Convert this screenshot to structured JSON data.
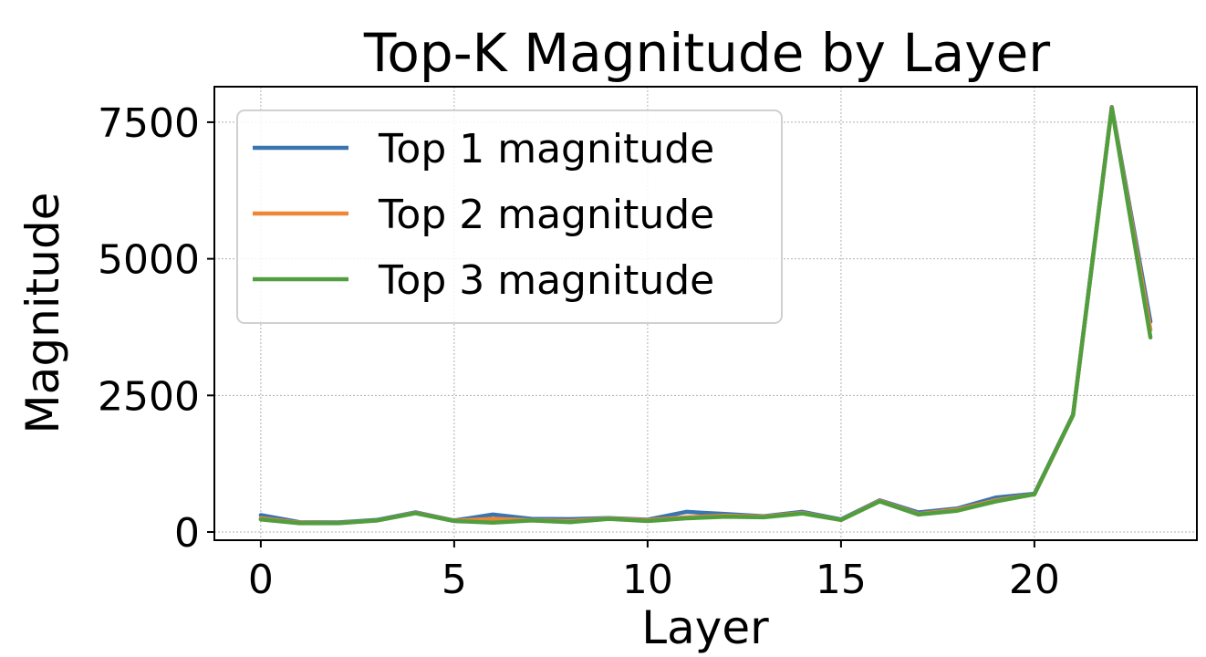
{
  "chart_data": {
    "type": "line",
    "title": "Top-K Magnitude by Layer",
    "xlabel": "Layer",
    "ylabel": "Magnitude",
    "xlim": [
      -1.2,
      24.2
    ],
    "ylim": [
      -150,
      8150
    ],
    "xticks": [
      0,
      5,
      10,
      15,
      20
    ],
    "xtick_labels": [
      "0",
      "5",
      "10",
      "15",
      "20"
    ],
    "yticks": [
      0,
      2500,
      5000,
      7500
    ],
    "ytick_labels": [
      "0",
      "2500",
      "5000",
      "7500"
    ],
    "grid": true,
    "legend_position": "upper-left",
    "x": [
      0,
      1,
      2,
      3,
      4,
      5,
      6,
      7,
      8,
      9,
      10,
      11,
      12,
      13,
      14,
      15,
      16,
      17,
      18,
      19,
      20,
      21,
      22,
      23
    ],
    "series": [
      {
        "name": "Top 1 magnitude",
        "color": "#3b75af",
        "values": [
          310,
          180,
          175,
          220,
          360,
          210,
          320,
          240,
          235,
          255,
          225,
          370,
          330,
          290,
          370,
          230,
          580,
          360,
          430,
          630,
          700,
          2150,
          7780,
          3850
        ]
      },
      {
        "name": "Top 2 magnitude",
        "color": "#ef8636",
        "values": [
          250,
          170,
          165,
          210,
          350,
          205,
          240,
          215,
          200,
          245,
          215,
          270,
          300,
          280,
          350,
          220,
          570,
          330,
          410,
          580,
          690,
          2140,
          7770,
          3700
        ]
      },
      {
        "name": "Top 3 magnitude",
        "color": "#519e3e",
        "values": [
          230,
          160,
          160,
          210,
          345,
          200,
          170,
          210,
          180,
          240,
          200,
          250,
          280,
          270,
          340,
          220,
          560,
          320,
          390,
          560,
          690,
          2140,
          7760,
          3560
        ]
      }
    ]
  }
}
